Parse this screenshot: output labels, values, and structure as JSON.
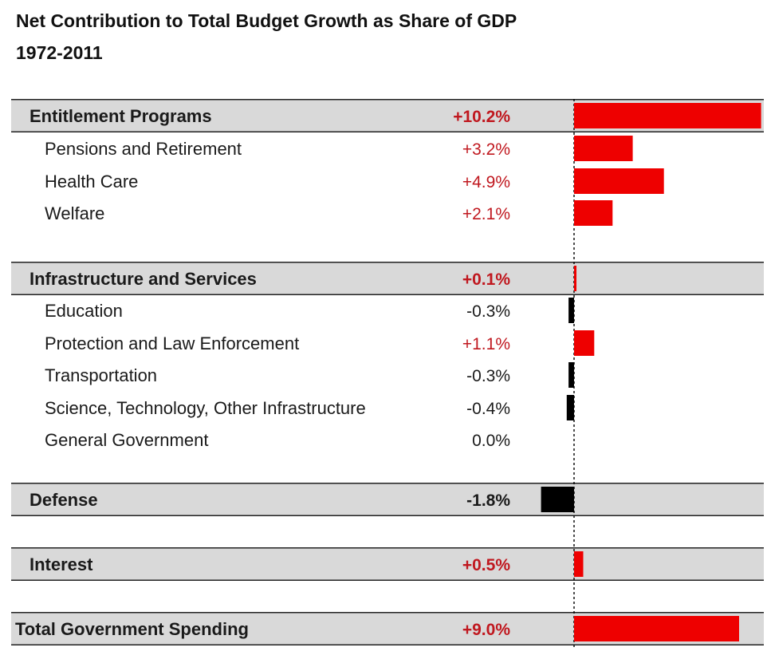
{
  "title_line1": "Net Contribution to Total Budget Growth as Share of GDP",
  "title_line2": "1972-2011",
  "colors": {
    "positive_bar": "#ee0000",
    "negative_bar": "#000000",
    "positive_text": "#c0181f",
    "negative_text": "#1a1a1a",
    "header_fill": "#d9d9d9"
  },
  "chart_data": {
    "type": "bar",
    "orientation": "horizontal",
    "title": "Net Contribution to Total Budget Growth as Share of GDP",
    "subtitle": "1972-2011",
    "unit": "% of GDP",
    "rows": [
      {
        "label": "Entitlement Programs",
        "value": 10.2,
        "display": "+10.2%",
        "level": "header"
      },
      {
        "label": "Pensions and Retirement",
        "value": 3.2,
        "display": "+3.2%",
        "level": "sub"
      },
      {
        "label": "Health Care",
        "value": 4.9,
        "display": "+4.9%",
        "level": "sub"
      },
      {
        "label": "Welfare",
        "value": 2.1,
        "display": "+2.1%",
        "level": "sub"
      },
      {
        "label": "Infrastructure and Services",
        "value": 0.1,
        "display": "+0.1%",
        "level": "header"
      },
      {
        "label": "Education",
        "value": -0.3,
        "display": "-0.3%",
        "level": "sub"
      },
      {
        "label": "Protection and Law Enforcement",
        "value": 1.1,
        "display": "+1.1%",
        "level": "sub"
      },
      {
        "label": "Transportation",
        "value": -0.3,
        "display": "-0.3%",
        "level": "sub"
      },
      {
        "label": "Science, Technology, Other Infrastructure",
        "value": -0.4,
        "display": "-0.4%",
        "level": "sub"
      },
      {
        "label": "General Government",
        "value": 0.0,
        "display": "0.0%",
        "level": "sub"
      },
      {
        "label": "Defense",
        "value": -1.8,
        "display": "-1.8%",
        "level": "header"
      },
      {
        "label": "Interest",
        "value": 0.5,
        "display": "+0.5%",
        "level": "header"
      },
      {
        "label": "Total Government Spending",
        "value": 9.0,
        "display": "+9.0%",
        "level": "total"
      }
    ],
    "grid": false,
    "legend": "none"
  }
}
